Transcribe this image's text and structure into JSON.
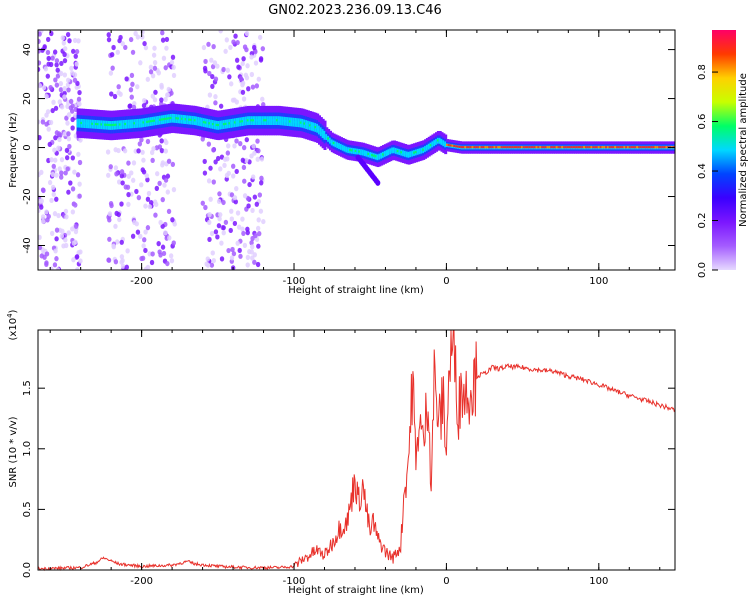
{
  "title": "GN02.2023.236.09.13.C46",
  "colors": {
    "snr_line": "#e8312b",
    "axis": "#000000",
    "background": "#ffffff",
    "colormap": [
      "#e6d9ff",
      "#a45cff",
      "#7b16ff",
      "#3a00ff",
      "#0044ff",
      "#00d8ff",
      "#00ff66",
      "#c8ff00",
      "#ffd000",
      "#ff3a00",
      "#ff0066"
    ]
  },
  "chart_data": [
    {
      "type": "heatmap",
      "name": "spectrogram",
      "xlabel": "Height of straight line (km)",
      "ylabel": "Frequency (Hz)",
      "xlim": [
        -268,
        150
      ],
      "ylim": [
        -50,
        48
      ],
      "xticks": [
        -200,
        -100,
        0,
        100
      ],
      "yticks": [
        -40,
        -20,
        0,
        20,
        40
      ],
      "colorbar": {
        "label": "Normalized spectral amplitude",
        "range": [
          0,
          0.97
        ],
        "ticks": [
          "0.0",
          "0.2",
          "0.4",
          "0.6",
          "0.8"
        ],
        "tick_values": [
          0,
          0.2,
          0.4,
          0.6,
          0.8
        ]
      },
      "ridge": {
        "x": [
          -242,
          -220,
          -200,
          -180,
          -165,
          -150,
          -130,
          -110,
          -95,
          -85,
          -75,
          -65,
          -55,
          -45,
          -35,
          -25,
          -15,
          -5,
          0,
          10,
          50,
          100,
          150
        ],
        "y": [
          10,
          9,
          10,
          12,
          11,
          9,
          11,
          11,
          10,
          8,
          2,
          -1,
          -2,
          -4,
          -1,
          -3,
          -1,
          3,
          1,
          0,
          0,
          0,
          0
        ]
      },
      "noise_bands": [
        [
          -268,
          -240
        ],
        [
          -222,
          -178
        ],
        [
          -160,
          -120
        ]
      ]
    },
    {
      "type": "line",
      "name": "snr",
      "xlabel": "Height of straight line (km)",
      "ylabel": "SNR (10 * v/v)",
      "multiplier": "(x10",
      "multiplier_exp": "4",
      "multiplier_close": ")",
      "xlim": [
        -268,
        150
      ],
      "ylim": [
        0,
        1.98
      ],
      "xticks": [
        -200,
        -100,
        0,
        100
      ],
      "yticks": [
        0.0,
        0.5,
        1.0,
        1.5
      ],
      "ytick_labels": [
        "0.0",
        "0.5",
        "1.0",
        "1.5"
      ],
      "series": [
        {
          "x": [
            -268,
            -240,
            -230,
            -225,
            -215,
            -200,
            -180,
            -170,
            -165,
            -150,
            -130,
            -110,
            -100,
            -95,
            -90,
            -85,
            -80,
            -75,
            -70,
            -65,
            -62,
            -60,
            -58,
            -55,
            -52,
            -50,
            -48,
            -45,
            -42,
            -40,
            -35,
            -30,
            -28,
            -25,
            -22,
            -20,
            -18,
            -15,
            -12,
            -10,
            -8,
            -5,
            -2,
            0,
            2,
            5,
            8,
            10,
            12,
            15,
            20,
            25,
            30,
            35,
            40,
            50,
            60,
            70,
            80,
            90,
            100,
            110,
            120,
            130,
            140,
            150
          ],
          "y": [
            0.01,
            0.02,
            0.06,
            0.1,
            0.05,
            0.03,
            0.04,
            0.07,
            0.05,
            0.03,
            0.02,
            0.02,
            0.03,
            0.08,
            0.12,
            0.16,
            0.12,
            0.22,
            0.35,
            0.4,
            0.6,
            0.8,
            0.55,
            0.7,
            0.45,
            0.3,
            0.4,
            0.25,
            0.2,
            0.15,
            0.1,
            0.2,
            0.6,
            0.9,
            1.6,
            0.8,
            1.3,
            1.0,
            1.5,
            0.7,
            1.6,
            1.2,
            1.4,
            1.0,
            1.7,
            1.9,
            1.3,
            1.55,
            1.45,
            1.5,
            1.6,
            1.62,
            1.67,
            1.66,
            1.68,
            1.67,
            1.65,
            1.64,
            1.6,
            1.57,
            1.53,
            1.48,
            1.44,
            1.4,
            1.36,
            1.32
          ]
        }
      ]
    }
  ]
}
